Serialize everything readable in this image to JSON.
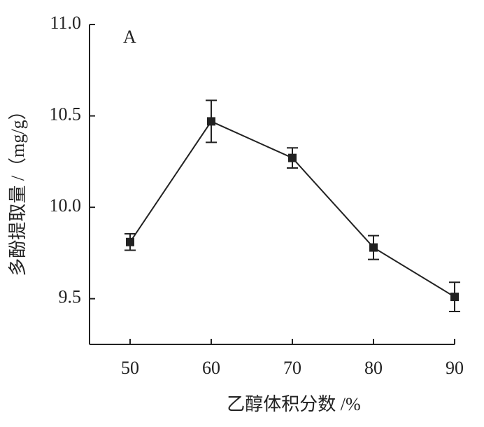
{
  "chart_data": {
    "type": "line",
    "annotation": "A",
    "x_label": "乙醇体积分数 /%",
    "y_label": "多酚提取量 /（mg/g）",
    "x": [
      50,
      60,
      70,
      80,
      90
    ],
    "series": [
      {
        "color": "#222222",
        "values": [
          9.81,
          10.47,
          10.27,
          9.78,
          9.51
        ],
        "errors": [
          0.045,
          0.115,
          0.055,
          0.065,
          0.08
        ]
      }
    ],
    "xlim": [
      45,
      90
    ],
    "xticks": [
      50,
      60,
      70,
      80,
      90
    ],
    "ylim": [
      9.25,
      11.0
    ],
    "yticks": [
      {
        "value": 9.5,
        "label": "9.5"
      },
      {
        "value": 10,
        "label": "10.0"
      },
      10.5,
      {
        "value": 11,
        "label": "11.0"
      }
    ]
  }
}
